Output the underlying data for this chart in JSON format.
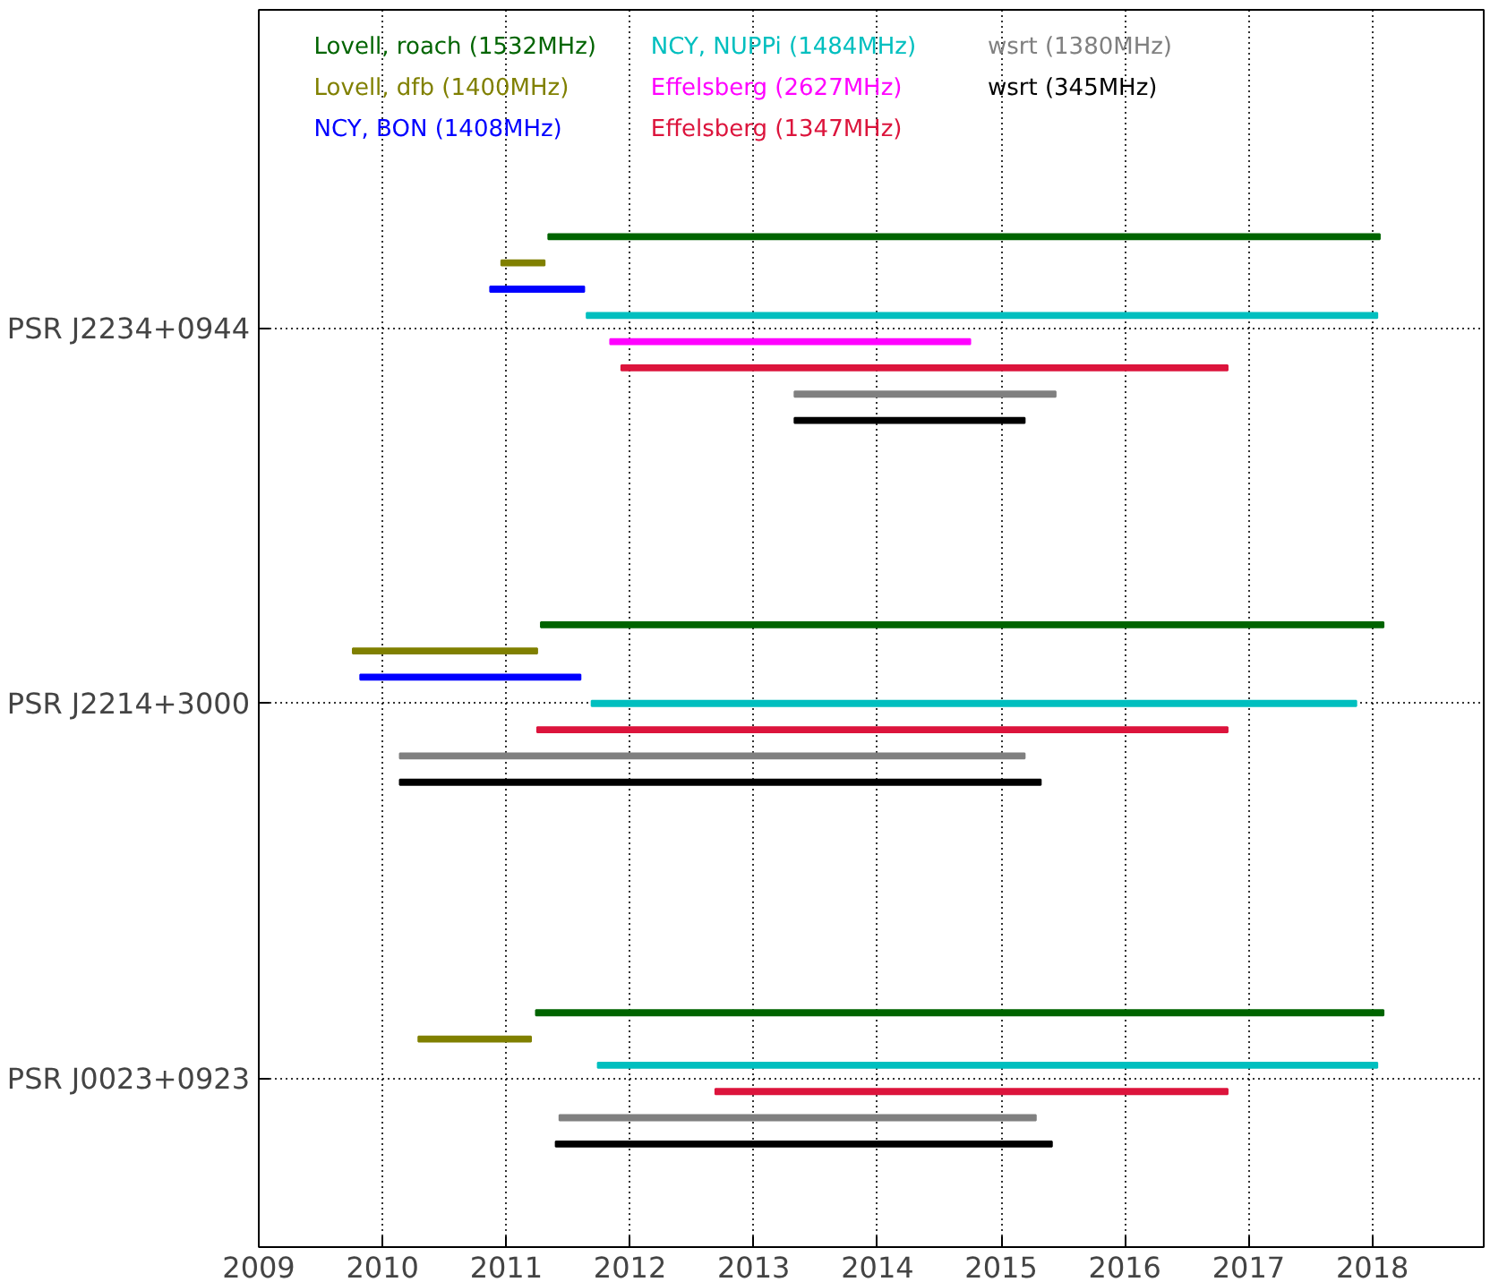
{
  "chart_data": {
    "type": "bar",
    "orientation": "horizontal",
    "grid": true,
    "legend": "top",
    "xlim": [
      2009,
      2018.9
    ],
    "xticks": [
      2009,
      2010,
      2011,
      2012,
      2013,
      2014,
      2015,
      2016,
      2017,
      2018
    ],
    "categories": [
      "PSR J2234+0944",
      "PSR J2214+3000",
      "PSR J0023+0923"
    ],
    "series": [
      {
        "name": "Lovell, roach (1532MHz)",
        "color": "#006400",
        "base": [
          2011.34,
          2011.28,
          2011.24
        ],
        "values": [
          6.72,
          6.81,
          6.85
        ]
      },
      {
        "name": "Lovell, dfb (1400MHz)",
        "color": "#808000",
        "base": [
          2010.96,
          2009.76,
          2010.29
        ],
        "values": [
          0.35,
          1.49,
          0.91
        ]
      },
      {
        "name": "NCY, BON (1408MHz)",
        "color": "#0000ff",
        "base": [
          2010.87,
          2009.82,
          null
        ],
        "values": [
          0.76,
          1.78,
          null
        ]
      },
      {
        "name": "NCY, NUPPi (1484MHz)",
        "color": "#00bfbf",
        "base": [
          2011.65,
          2011.69,
          2011.74
        ],
        "values": [
          6.39,
          6.18,
          6.3
        ]
      },
      {
        "name": "Effelsberg (2627MHz)",
        "color": "#ff00ff",
        "base": [
          2011.84,
          null,
          null
        ],
        "values": [
          2.91,
          null,
          null
        ]
      },
      {
        "name": "Effelsberg (1347MHz)",
        "color": "#dc143c",
        "base": [
          2011.93,
          2011.25,
          2012.69
        ],
        "values": [
          4.9,
          5.58,
          4.14
        ]
      },
      {
        "name": "wsrt (1380MHz)",
        "color": "#808080",
        "base": [
          2013.33,
          2010.14,
          2011.43
        ],
        "values": [
          2.11,
          5.05,
          3.85
        ]
      },
      {
        "name": "wsrt (345MHz)",
        "color": "#000000",
        "base": [
          2013.33,
          2010.14,
          2011.4
        ],
        "values": [
          1.86,
          5.18,
          4.01
        ]
      }
    ]
  }
}
